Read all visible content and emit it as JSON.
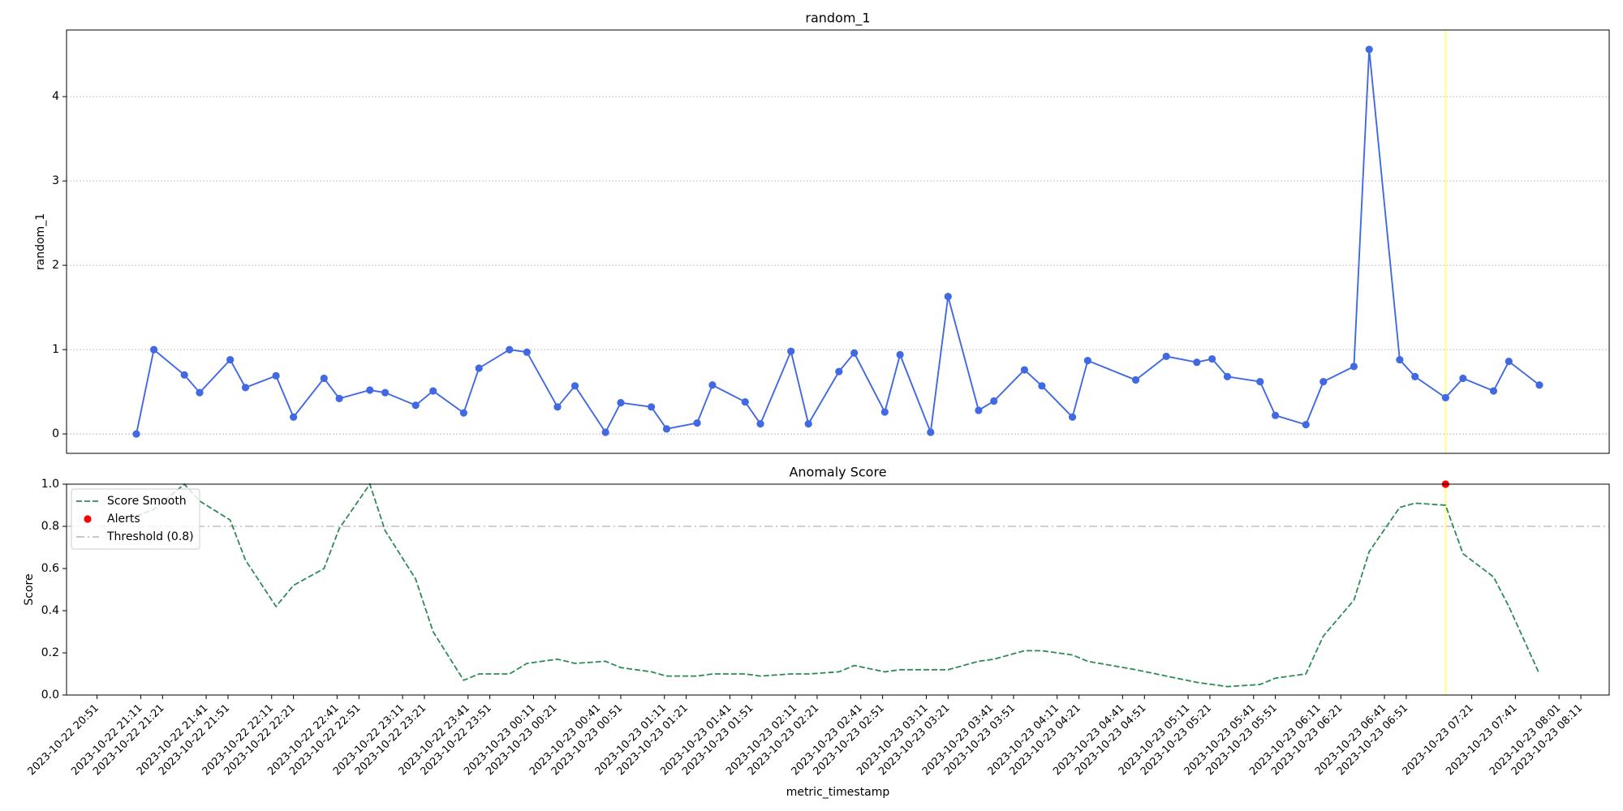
{
  "chart_data": [
    {
      "type": "line",
      "title": "random_1",
      "y_label": "random_1",
      "grid": true,
      "x": [
        "2023-10-22 21:09",
        "2023-10-22 21:17",
        "2023-10-22 21:31",
        "2023-10-22 21:38",
        "2023-10-22 21:52",
        "2023-10-22 21:59",
        "2023-10-22 22:13",
        "2023-10-22 22:21",
        "2023-10-22 22:35",
        "2023-10-22 22:42",
        "2023-10-22 22:56",
        "2023-10-22 23:03",
        "2023-10-22 23:17",
        "2023-10-22 23:25",
        "2023-10-22 23:39",
        "2023-10-22 23:46",
        "2023-10-23 00:00",
        "2023-10-23 00:08",
        "2023-10-23 00:22",
        "2023-10-23 00:30",
        "2023-10-23 00:44",
        "2023-10-23 00:51",
        "2023-10-23 01:05",
        "2023-10-23 01:12",
        "2023-10-23 01:26",
        "2023-10-23 01:33",
        "2023-10-23 01:48",
        "2023-10-23 01:55",
        "2023-10-23 02:09",
        "2023-10-23 02:17",
        "2023-10-23 02:31",
        "2023-10-23 02:38",
        "2023-10-23 02:52",
        "2023-10-23 02:59",
        "2023-10-23 03:13",
        "2023-10-23 03:21",
        "2023-10-23 03:35",
        "2023-10-23 03:42",
        "2023-10-23 03:56",
        "2023-10-23 04:04",
        "2023-10-23 04:18",
        "2023-10-23 04:25",
        "2023-10-23 04:47",
        "2023-10-23 05:01",
        "2023-10-23 05:15",
        "2023-10-23 05:22",
        "2023-10-23 05:29",
        "2023-10-23 05:44",
        "2023-10-23 05:51",
        "2023-10-23 06:05",
        "2023-10-23 06:13",
        "2023-10-23 06:27",
        "2023-10-23 06:34",
        "2023-10-23 06:48",
        "2023-10-23 06:55",
        "2023-10-23 07:09",
        "2023-10-23 07:17",
        "2023-10-23 07:31",
        "2023-10-23 07:38",
        "2023-10-23 07:52"
      ],
      "series": [
        {
          "color": "#4169e1",
          "markers": true,
          "style": "solid",
          "values": [
            0.0,
            1.0,
            0.7,
            0.49,
            0.88,
            0.55,
            0.69,
            0.2,
            0.66,
            0.42,
            0.52,
            0.49,
            0.34,
            0.51,
            0.25,
            0.78,
            1.0,
            0.97,
            0.32,
            0.57,
            0.02,
            0.37,
            0.32,
            0.06,
            0.13,
            0.58,
            0.38,
            0.12,
            0.98,
            0.12,
            0.74,
            0.96,
            0.26,
            0.94,
            0.02,
            1.63,
            0.28,
            0.39,
            0.76,
            0.57,
            0.2,
            0.87,
            0.64,
            0.92,
            0.85,
            0.89,
            0.68,
            0.62,
            0.22,
            0.11,
            0.62,
            0.8,
            4.56,
            0.88,
            0.68,
            0.43,
            0.66,
            0.51,
            0.86,
            0.58
          ]
        }
      ],
      "highlight_x": [
        "2023-10-23 07:09"
      ],
      "highlight_color": "#ffff99",
      "xlim": [
        "2023-10-22 20:37",
        "2023-10-23 08:24"
      ],
      "ylim": [
        -0.23,
        4.79
      ],
      "yticks": [
        0,
        1,
        2,
        3,
        4
      ]
    },
    {
      "type": "line",
      "title": "Anomaly Score",
      "y_label": "Score",
      "x_label": "metric_timestamp",
      "grid": false,
      "legend": "upper left",
      "x": [
        "2023-10-22 21:09",
        "2023-10-22 21:17",
        "2023-10-22 21:31",
        "2023-10-22 21:38",
        "2023-10-22 21:52",
        "2023-10-22 21:59",
        "2023-10-22 22:13",
        "2023-10-22 22:21",
        "2023-10-22 22:35",
        "2023-10-22 22:42",
        "2023-10-22 22:56",
        "2023-10-22 23:03",
        "2023-10-22 23:17",
        "2023-10-22 23:25",
        "2023-10-22 23:39",
        "2023-10-22 23:46",
        "2023-10-23 00:00",
        "2023-10-23 00:08",
        "2023-10-23 00:22",
        "2023-10-23 00:30",
        "2023-10-23 00:44",
        "2023-10-23 00:51",
        "2023-10-23 01:05",
        "2023-10-23 01:12",
        "2023-10-23 01:26",
        "2023-10-23 01:33",
        "2023-10-23 01:48",
        "2023-10-23 01:55",
        "2023-10-23 02:09",
        "2023-10-23 02:17",
        "2023-10-23 02:31",
        "2023-10-23 02:38",
        "2023-10-23 02:52",
        "2023-10-23 02:59",
        "2023-10-23 03:13",
        "2023-10-23 03:21",
        "2023-10-23 03:35",
        "2023-10-23 03:42",
        "2023-10-23 03:56",
        "2023-10-23 04:04",
        "2023-10-23 04:18",
        "2023-10-23 04:25",
        "2023-10-23 04:47",
        "2023-10-23 05:01",
        "2023-10-23 05:15",
        "2023-10-23 05:22",
        "2023-10-23 05:29",
        "2023-10-23 05:44",
        "2023-10-23 05:51",
        "2023-10-23 06:05",
        "2023-10-23 06:13",
        "2023-10-23 06:27",
        "2023-10-23 06:34",
        "2023-10-23 06:48",
        "2023-10-23 06:55",
        "2023-10-23 07:09",
        "2023-10-23 07:17",
        "2023-10-23 07:31",
        "2023-10-23 07:38",
        "2023-10-23 07:52"
      ],
      "series": [
        {
          "name": "Score Smooth",
          "color": "#2e8b57",
          "markers": false,
          "style": "dashed",
          "values": [
            0.85,
            0.88,
            1.0,
            0.92,
            0.83,
            0.64,
            0.42,
            0.52,
            0.6,
            0.79,
            1.0,
            0.78,
            0.55,
            0.3,
            0.07,
            0.1,
            0.1,
            0.15,
            0.17,
            0.15,
            0.16,
            0.13,
            0.11,
            0.09,
            0.09,
            0.1,
            0.1,
            0.09,
            0.1,
            0.1,
            0.11,
            0.14,
            0.11,
            0.12,
            0.12,
            0.12,
            0.16,
            0.17,
            0.21,
            0.21,
            0.19,
            0.16,
            0.12,
            0.09,
            0.06,
            0.05,
            0.04,
            0.05,
            0.08,
            0.1,
            0.28,
            0.45,
            0.68,
            0.89,
            0.91,
            0.9,
            0.67,
            0.56,
            0.42,
            0.1
          ]
        }
      ],
      "alerts": {
        "name": "Alerts",
        "color": "#ff0000",
        "x": [
          "2023-10-23 07:09"
        ],
        "values": [
          1.0
        ]
      },
      "threshold": {
        "name": "Threshold (0.8)",
        "value": 0.8,
        "color": "#c0c0c0"
      },
      "highlight_x": [
        "2023-10-23 07:09"
      ],
      "highlight_color": "#ffff99",
      "xlim": [
        "2023-10-22 20:37",
        "2023-10-23 08:24"
      ],
      "xticks": [
        "2023-10-22 20:51",
        "2023-10-22 21:11",
        "2023-10-22 21:21",
        "2023-10-22 21:41",
        "2023-10-22 21:51",
        "2023-10-22 22:11",
        "2023-10-22 22:21",
        "2023-10-22 22:41",
        "2023-10-22 22:51",
        "2023-10-22 23:11",
        "2023-10-22 23:21",
        "2023-10-22 23:41",
        "2023-10-22 23:51",
        "2023-10-23 00:11",
        "2023-10-23 00:21",
        "2023-10-23 00:41",
        "2023-10-23 00:51",
        "2023-10-23 01:11",
        "2023-10-23 01:21",
        "2023-10-23 01:41",
        "2023-10-23 01:51",
        "2023-10-23 02:11",
        "2023-10-23 02:21",
        "2023-10-23 02:41",
        "2023-10-23 02:51",
        "2023-10-23 03:11",
        "2023-10-23 03:21",
        "2023-10-23 03:41",
        "2023-10-23 03:51",
        "2023-10-23 04:11",
        "2023-10-23 04:21",
        "2023-10-23 04:41",
        "2023-10-23 04:51",
        "2023-10-23 05:11",
        "2023-10-23 05:21",
        "2023-10-23 05:41",
        "2023-10-23 05:51",
        "2023-10-23 06:11",
        "2023-10-23 06:21",
        "2023-10-23 06:41",
        "2023-10-23 06:51",
        "2023-10-23 07:21",
        "2023-10-23 07:41",
        "2023-10-23 08:01",
        "2023-10-23 08:11"
      ],
      "ylim": [
        0,
        1
      ],
      "yticks": [
        {
          "value": 0,
          "label": "0.0"
        },
        0.2,
        0.4,
        0.6,
        0.8,
        {
          "value": 1,
          "label": "1.0"
        }
      ]
    }
  ]
}
